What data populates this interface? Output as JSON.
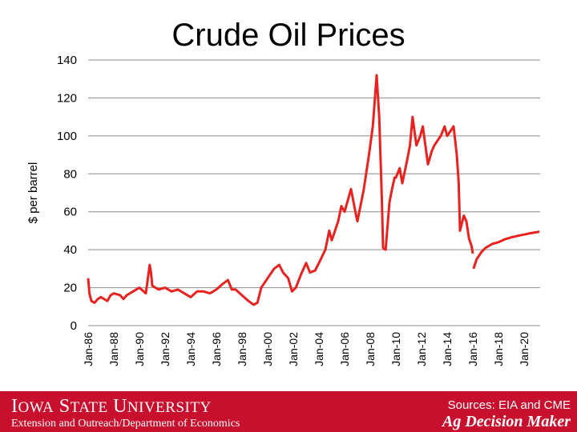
{
  "slide": {
    "title": "Crude Oil Prices"
  },
  "footer": {
    "university": "Iowa State University",
    "department": "Extension and Outreach/Department of Economics",
    "sources": "Sources: EIA and CME",
    "brand": "Ag Decision Maker"
  },
  "colors": {
    "series": "#e8231f",
    "footer_bg": "#c8102e",
    "grid": "#8c8c8c"
  },
  "chart_data": {
    "type": "line",
    "title": "",
    "ylabel": "$ per barrel",
    "xlabel": "",
    "ylim": [
      0,
      140
    ],
    "y_ticks": [
      0,
      20,
      40,
      60,
      80,
      100,
      120,
      140
    ],
    "x_range": [
      1986.0,
      2021.25
    ],
    "x_ticks": [
      {
        "label": "Jan-86",
        "year": 1986
      },
      {
        "label": "Jan-88",
        "year": 1988
      },
      {
        "label": "Jan-90",
        "year": 1990
      },
      {
        "label": "Jan-92",
        "year": 1992
      },
      {
        "label": "Jan-94",
        "year": 1994
      },
      {
        "label": "Jan-96",
        "year": 1996
      },
      {
        "label": "Jan-98",
        "year": 1998
      },
      {
        "label": "Jan-00",
        "year": 2000
      },
      {
        "label": "Jan-02",
        "year": 2002
      },
      {
        "label": "Jan-04",
        "year": 2004
      },
      {
        "label": "Jan-06",
        "year": 2006
      },
      {
        "label": "Jan-08",
        "year": 2008
      },
      {
        "label": "Jan-10",
        "year": 2010
      },
      {
        "label": "Jan-12",
        "year": 2012
      },
      {
        "label": "Jan-14",
        "year": 2014
      },
      {
        "label": "Jan-16",
        "year": 2016
      },
      {
        "label": "Jan-18",
        "year": 2018
      },
      {
        "label": "Jan-20",
        "year": 2020
      }
    ],
    "grid": "horizontal",
    "legend": "none",
    "series": [
      {
        "kind": "historical",
        "points": [
          [
            1986.0,
            25
          ],
          [
            1986.1,
            17
          ],
          [
            1986.25,
            13
          ],
          [
            1986.5,
            12
          ],
          [
            1986.75,
            14
          ],
          [
            1987.0,
            15
          ],
          [
            1987.5,
            13
          ],
          [
            1987.75,
            16
          ],
          [
            1988.0,
            17
          ],
          [
            1988.5,
            16
          ],
          [
            1988.75,
            14
          ],
          [
            1989.0,
            16
          ],
          [
            1989.5,
            18
          ],
          [
            1990.0,
            20
          ],
          [
            1990.5,
            17
          ],
          [
            1990.8,
            32
          ],
          [
            1990.9,
            28
          ],
          [
            1991.0,
            21
          ],
          [
            1991.5,
            19
          ],
          [
            1992.0,
            20
          ],
          [
            1992.5,
            18
          ],
          [
            1993.0,
            19
          ],
          [
            1993.5,
            17
          ],
          [
            1994.0,
            15
          ],
          [
            1994.5,
            18
          ],
          [
            1995.0,
            18
          ],
          [
            1995.5,
            17
          ],
          [
            1996.0,
            19
          ],
          [
            1996.5,
            22
          ],
          [
            1996.9,
            24
          ],
          [
            1997.2,
            19
          ],
          [
            1997.5,
            19
          ],
          [
            1998.0,
            16
          ],
          [
            1998.5,
            13
          ],
          [
            1998.9,
            11
          ],
          [
            1999.2,
            12
          ],
          [
            1999.5,
            20
          ],
          [
            2000.0,
            25
          ],
          [
            2000.5,
            30
          ],
          [
            2000.9,
            32
          ],
          [
            2001.2,
            28
          ],
          [
            2001.6,
            25
          ],
          [
            2001.9,
            18
          ],
          [
            2002.2,
            20
          ],
          [
            2002.6,
            27
          ],
          [
            2003.0,
            33
          ],
          [
            2003.3,
            28
          ],
          [
            2003.7,
            29
          ],
          [
            2004.0,
            33
          ],
          [
            2004.5,
            40
          ],
          [
            2004.8,
            50
          ],
          [
            2005.0,
            45
          ],
          [
            2005.5,
            55
          ],
          [
            2005.75,
            63
          ],
          [
            2006.0,
            60
          ],
          [
            2006.5,
            72
          ],
          [
            2006.9,
            58
          ],
          [
            2007.0,
            55
          ],
          [
            2007.5,
            72
          ],
          [
            2007.9,
            90
          ],
          [
            2008.2,
            105
          ],
          [
            2008.5,
            132
          ],
          [
            2008.7,
            110
          ],
          [
            2008.9,
            68
          ],
          [
            2009.0,
            41
          ],
          [
            2009.2,
            40
          ],
          [
            2009.5,
            65
          ],
          [
            2009.7,
            72
          ],
          [
            2009.9,
            78
          ],
          [
            2010.0,
            78
          ],
          [
            2010.3,
            83
          ],
          [
            2010.5,
            75
          ],
          [
            2010.9,
            88
          ],
          [
            2011.1,
            95
          ],
          [
            2011.3,
            110
          ],
          [
            2011.6,
            95
          ],
          [
            2011.9,
            100
          ],
          [
            2012.1,
            105
          ],
          [
            2012.5,
            85
          ],
          [
            2012.8,
            92
          ],
          [
            2013.0,
            95
          ],
          [
            2013.5,
            100
          ],
          [
            2013.8,
            105
          ],
          [
            2014.0,
            100
          ],
          [
            2014.5,
            105
          ],
          [
            2014.75,
            90
          ],
          [
            2014.9,
            75
          ],
          [
            2015.0,
            50
          ],
          [
            2015.3,
            58
          ],
          [
            2015.5,
            55
          ],
          [
            2015.7,
            46
          ],
          [
            2015.9,
            42
          ],
          [
            2016.0,
            38
          ]
        ]
      },
      {
        "kind": "futures",
        "points": [
          [
            2016.05,
            30
          ],
          [
            2016.3,
            35
          ],
          [
            2016.7,
            39
          ],
          [
            2017.0,
            41
          ],
          [
            2017.5,
            43
          ],
          [
            2018.0,
            44
          ],
          [
            2018.5,
            45.5
          ],
          [
            2019.0,
            46.5
          ],
          [
            2019.5,
            47.3
          ],
          [
            2020.0,
            48
          ],
          [
            2020.5,
            48.7
          ],
          [
            2021.2,
            49.5
          ]
        ]
      }
    ]
  }
}
